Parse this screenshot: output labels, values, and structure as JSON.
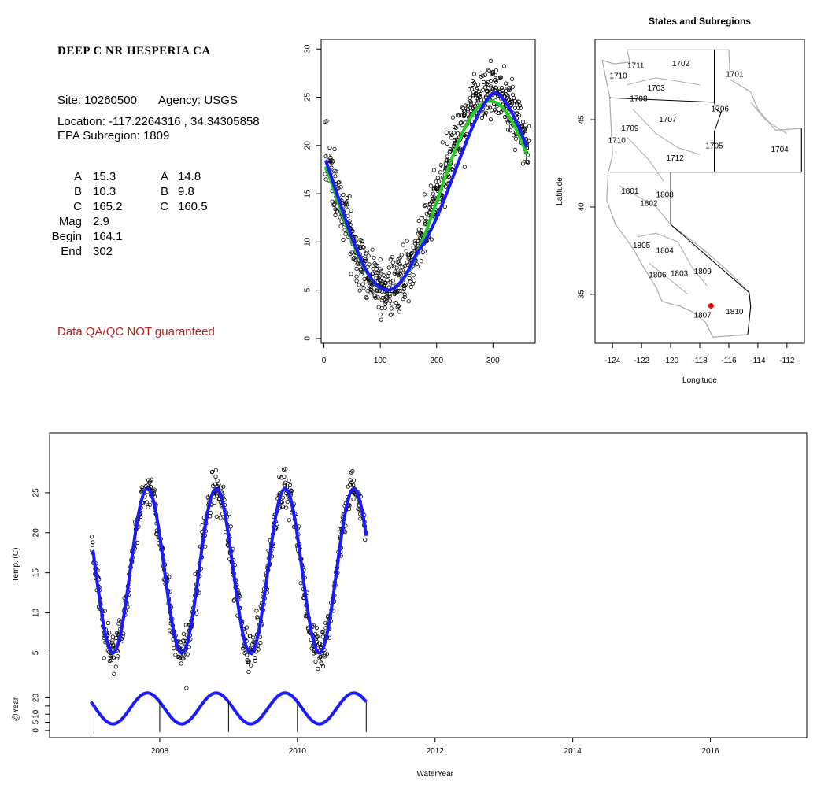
{
  "site": {
    "title": "DEEP C NR HESPERIA CA",
    "site_label": "Site: 10260500",
    "agency_label": "Agency: USGS",
    "location_label": "Location: -117.2264316 , 34.34305858",
    "subregion_label": "EPA Subregion: 1809",
    "qa_note": "Data QA/QC NOT guaranteed"
  },
  "params": {
    "rows": [
      {
        "label": "A",
        "v1": "15.3",
        "v2label": "A",
        "v2": "14.8"
      },
      {
        "label": "B",
        "v1": "10.3",
        "v2label": "B",
        "v2": "9.8"
      },
      {
        "label": "C",
        "v1": "165.2",
        "v2label": "C",
        "v2": "160.5"
      },
      {
        "label": "Mag",
        "v1": "2.9",
        "v2label": "",
        "v2": ""
      },
      {
        "label": "Begin",
        "v1": "164.1",
        "v2label": "",
        "v2": ""
      },
      {
        "label": "End",
        "v1": "302",
        "v2label": "",
        "v2": ""
      }
    ]
  },
  "colors": {
    "fit_blue": "#1a1aff",
    "fit_green": "#22cc22",
    "points": "#000000",
    "site_marker": "#ff0000",
    "qa_text": "#b22222",
    "map_lines": "#aaaaaa"
  },
  "chart_data": [
    {
      "type": "scatter",
      "title": "",
      "xlabel": "",
      "ylabel": "",
      "xlim": [
        -5,
        375
      ],
      "ylim": [
        -0.5,
        31
      ],
      "x_ticks": [
        0,
        100,
        200,
        300
      ],
      "y_ticks": [
        0,
        5,
        10,
        15,
        20,
        25,
        30
      ],
      "series": [
        {
          "role": "observations",
          "marker": "open-circle",
          "model": "seasonal",
          "A": 15.3,
          "B": 10.3,
          "C": 165.2,
          "mag": 2.9,
          "begin": 164.1,
          "end": 302
        },
        {
          "role": "fit",
          "color": "#22cc22",
          "A": 14.8,
          "B": 9.8,
          "C": 160.5
        },
        {
          "role": "fit",
          "color": "#1a1aff",
          "A": 15.3,
          "B": 10.3,
          "C": 165.2,
          "mag": 2.9,
          "begin": 164.1,
          "end": 302
        }
      ]
    },
    {
      "type": "map",
      "title": "States and Subregions",
      "xlabel": "Longitude",
      "ylabel": "Latitude",
      "xlim": [
        -125.2,
        -110.8
      ],
      "ylim": [
        32.2,
        49.6
      ],
      "x_ticks": [
        -124,
        -122,
        -120,
        -118,
        -116,
        -114,
        -112
      ],
      "y_ticks": [
        35,
        40,
        45
      ],
      "regions": [
        {
          "label": "1711",
          "lon": -122.4,
          "lat": 48.1
        },
        {
          "label": "1702",
          "lon": -119.3,
          "lat": 48.2
        },
        {
          "label": "1710",
          "lon": -123.6,
          "lat": 47.5
        },
        {
          "label": "1701",
          "lon": -115.6,
          "lat": 47.6
        },
        {
          "label": "1703",
          "lon": -121.0,
          "lat": 46.8
        },
        {
          "label": "1708",
          "lon": -122.2,
          "lat": 46.2
        },
        {
          "label": "1706",
          "lon": -116.6,
          "lat": 45.6
        },
        {
          "label": "1707",
          "lon": -120.2,
          "lat": 45.0
        },
        {
          "label": "1709",
          "lon": -122.8,
          "lat": 44.5
        },
        {
          "label": "1710",
          "lon": -123.7,
          "lat": 43.8
        },
        {
          "label": "1705",
          "lon": -117.0,
          "lat": 43.5
        },
        {
          "label": "1704",
          "lon": -112.5,
          "lat": 43.3
        },
        {
          "label": "1712",
          "lon": -119.7,
          "lat": 42.8
        },
        {
          "label": "1801",
          "lon": -122.8,
          "lat": 40.9
        },
        {
          "label": "1808",
          "lon": -120.4,
          "lat": 40.7
        },
        {
          "label": "1802",
          "lon": -121.5,
          "lat": 40.2
        },
        {
          "label": "1805",
          "lon": -122.0,
          "lat": 37.8
        },
        {
          "label": "1804",
          "lon": -120.4,
          "lat": 37.5
        },
        {
          "label": "1806",
          "lon": -120.9,
          "lat": 36.1
        },
        {
          "label": "1803",
          "lon": -119.4,
          "lat": 36.2
        },
        {
          "label": "1809",
          "lon": -117.8,
          "lat": 36.3
        },
        {
          "label": "1810",
          "lon": -115.6,
          "lat": 34.0
        },
        {
          "label": "1807",
          "lon": -117.8,
          "lat": 33.8
        }
      ],
      "site": {
        "lon": -117.2264316,
        "lat": 34.34305858
      }
    },
    {
      "type": "scatter",
      "title": "",
      "xlabel": "WaterYear",
      "ylabel": "Temp. (C)",
      "xlim": [
        2006.4,
        2017.4
      ],
      "ylim": [
        2,
        30
      ],
      "x_ticks": [
        2008,
        2010,
        2012,
        2014,
        2016
      ],
      "y_ticks": [
        5,
        10,
        15,
        20,
        25
      ],
      "data_range": [
        2007.0,
        2011.0
      ],
      "peaks": [
        {
          "x": 2007.82,
          "y": 25.5
        },
        {
          "x": 2008.82,
          "y": 25.5
        },
        {
          "x": 2009.82,
          "y": 25.5
        },
        {
          "x": 2010.82,
          "y": 25.5
        }
      ],
      "troughs": [
        {
          "x": 2007.3,
          "y": 5
        },
        {
          "x": 2008.3,
          "y": 5
        },
        {
          "x": 2009.3,
          "y": 5
        },
        {
          "x": 2010.3,
          "y": 5
        }
      ]
    },
    {
      "type": "line",
      "title": "",
      "ylabel": "@Year",
      "ylim": [
        -2,
        28
      ],
      "y_ticks": [
        0,
        5,
        10,
        15,
        20
      ],
      "y_tick_labels": [
        "0",
        "5",
        "10",
        "",
        "20"
      ],
      "year_markers": [
        2007,
        2008,
        2009,
        2010,
        2011
      ],
      "series": [
        {
          "color": "#1a1aff",
          "peak": 23,
          "trough": 4
        }
      ]
    }
  ]
}
